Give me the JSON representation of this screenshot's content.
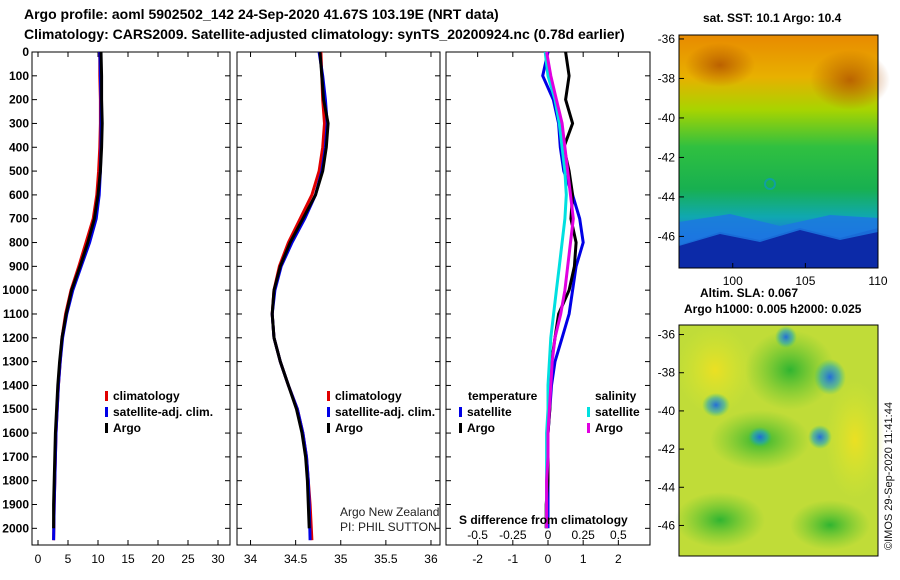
{
  "header": {
    "line1": "Argo profile: aoml 5902502_142 24-Sep-2020 41.67S 103.19E (NRT data)",
    "line2": "Climatology: CARS2009. Satellite-adjusted climatology: synTS_20200924.nc (0.78d earlier)"
  },
  "colors": {
    "climatology": "#e00000",
    "satellite": "#0000e6",
    "argo": "#000000",
    "sat_salinity": "#00e0e0",
    "argo_salinity": "#e000e0"
  },
  "chart_data": [
    {
      "type": "line",
      "panel": "temperature",
      "ylabel": "depth",
      "yticks": [
        0,
        100,
        200,
        300,
        400,
        500,
        600,
        700,
        800,
        900,
        1000,
        1100,
        1200,
        1300,
        1400,
        1500,
        1600,
        1700,
        1800,
        1900,
        2000
      ],
      "xticks": [
        0,
        5,
        10,
        15,
        20,
        25,
        30
      ],
      "xlim": [
        -1,
        32
      ],
      "ylim": [
        2070,
        0
      ],
      "legend": [
        "climatology",
        "satellite-adj. clim.",
        "Argo"
      ],
      "series": [
        {
          "name": "climatology",
          "color": "#e00000",
          "x": [
            10.3,
            10.3,
            10.4,
            10.4,
            10.3,
            10.1,
            9.8,
            9.2,
            8.0,
            6.8,
            5.5,
            4.6,
            4.0,
            3.7,
            3.4,
            3.2,
            3.0,
            2.9,
            2.8,
            2.7,
            2.6
          ],
          "y": [
            0,
            100,
            200,
            300,
            400,
            500,
            600,
            700,
            800,
            900,
            1000,
            1100,
            1200,
            1300,
            1400,
            1500,
            1600,
            1700,
            1800,
            1900,
            2050
          ]
        },
        {
          "name": "satellite-adj. clim.",
          "color": "#0000e6",
          "x": [
            10.3,
            10.4,
            10.5,
            10.5,
            10.5,
            10.4,
            10.2,
            9.7,
            8.6,
            7.2,
            5.8,
            4.8,
            4.1,
            3.7,
            3.4,
            3.2,
            3.0,
            2.9,
            2.8,
            2.7,
            2.6
          ],
          "y": [
            0,
            100,
            200,
            300,
            400,
            500,
            600,
            700,
            800,
            900,
            1000,
            1100,
            1200,
            1300,
            1400,
            1500,
            1600,
            1700,
            1800,
            1900,
            2050
          ]
        },
        {
          "name": "Argo",
          "color": "#000000",
          "x": [
            10.5,
            10.6,
            10.6,
            10.7,
            10.6,
            10.4,
            10.0,
            9.4,
            8.3,
            7.0,
            5.6,
            4.7,
            4.0,
            3.6,
            3.3,
            3.1,
            2.9,
            2.8,
            2.7,
            2.6,
            2.6
          ],
          "y": [
            0,
            100,
            200,
            300,
            400,
            500,
            600,
            700,
            800,
            900,
            1000,
            1100,
            1200,
            1300,
            1400,
            1500,
            1600,
            1700,
            1800,
            1900,
            2000
          ]
        }
      ]
    },
    {
      "type": "line",
      "panel": "salinity",
      "xticks": [
        34,
        34.5,
        35,
        35.5,
        36
      ],
      "xlim": [
        33.85,
        36.1
      ],
      "ylim": [
        2070,
        0
      ],
      "legend": [
        "climatology",
        "satellite-adj. clim.",
        "Argo"
      ],
      "series": [
        {
          "name": "climatology",
          "color": "#e00000",
          "x": [
            34.78,
            34.79,
            34.8,
            34.82,
            34.8,
            34.76,
            34.68,
            34.55,
            34.42,
            34.32,
            34.26,
            34.24,
            34.26,
            34.33,
            34.42,
            34.52,
            34.58,
            34.62,
            34.64,
            34.66,
            34.68
          ],
          "y": [
            0,
            100,
            200,
            300,
            400,
            500,
            600,
            700,
            800,
            900,
            1000,
            1100,
            1200,
            1300,
            1400,
            1500,
            1600,
            1700,
            1800,
            1900,
            2050
          ]
        },
        {
          "name": "satellite-adj. clim.",
          "color": "#0000e6",
          "x": [
            34.76,
            34.8,
            34.83,
            34.85,
            34.83,
            34.79,
            34.72,
            34.6,
            34.46,
            34.34,
            34.27,
            34.24,
            34.26,
            34.33,
            34.42,
            34.52,
            34.58,
            34.62,
            34.64,
            34.65,
            34.66
          ],
          "y": [
            0,
            100,
            200,
            300,
            400,
            500,
            600,
            700,
            800,
            900,
            1000,
            1100,
            1200,
            1300,
            1400,
            1500,
            1600,
            1700,
            1800,
            1900,
            2050
          ]
        },
        {
          "name": "Argo",
          "color": "#000000",
          "x": [
            34.77,
            34.79,
            34.81,
            34.86,
            34.84,
            34.8,
            34.72,
            34.58,
            34.44,
            34.33,
            34.26,
            34.24,
            34.26,
            34.33,
            34.42,
            34.51,
            34.57,
            34.61,
            34.63,
            34.64,
            34.65
          ],
          "y": [
            0,
            100,
            200,
            300,
            400,
            500,
            600,
            700,
            800,
            900,
            1000,
            1100,
            1200,
            1300,
            1400,
            1500,
            1600,
            1700,
            1800,
            1900,
            2000
          ]
        }
      ]
    },
    {
      "type": "line",
      "panel": "difference",
      "xlabel": "S difference from climatology",
      "xticks_top": [
        "-0.5",
        "-0.25",
        "0",
        "0.25",
        "0.5"
      ],
      "xticks_bottom": [
        "-2",
        "-1",
        "0",
        "1",
        "2"
      ],
      "xlim": [
        -2.9,
        2.9
      ],
      "ylim": [
        2070,
        0
      ],
      "legend_left": {
        "title": "temperature",
        "items": [
          "satellite",
          "Argo"
        ]
      },
      "legend_right": {
        "title": "salinity",
        "items": [
          "satellite",
          "Argo"
        ]
      },
      "series": [
        {
          "name": "temperature satellite",
          "color": "#0000e6",
          "x": [
            0.0,
            -0.15,
            0.15,
            0.3,
            0.35,
            0.45,
            0.7,
            0.9,
            1.0,
            0.8,
            0.7,
            0.6,
            0.4,
            0.2,
            0.1,
            0.05,
            0.0,
            0.0,
            0.0,
            0.0,
            0.0
          ],
          "y": [
            0,
            100,
            200,
            300,
            400,
            500,
            600,
            700,
            800,
            900,
            1000,
            1100,
            1200,
            1300,
            1400,
            1500,
            1600,
            1700,
            1800,
            1900,
            2000
          ]
        },
        {
          "name": "temperature Argo",
          "color": "#000000",
          "x": [
            0.5,
            0.6,
            0.5,
            0.7,
            0.45,
            0.6,
            0.7,
            0.65,
            0.8,
            0.75,
            0.6,
            0.3,
            0.2,
            0.1,
            0.05,
            0.05,
            0.0,
            0.0,
            0.0,
            -0.05,
            -0.05
          ],
          "y": [
            0,
            100,
            200,
            300,
            400,
            500,
            600,
            700,
            800,
            900,
            1000,
            1100,
            1200,
            1300,
            1400,
            1500,
            1600,
            1700,
            1800,
            1900,
            2000
          ]
        },
        {
          "name": "salinity satellite",
          "color": "#00e0e0",
          "x": [
            -0.02,
            0.0,
            0.05,
            0.08,
            0.1,
            0.12,
            0.13,
            0.12,
            0.1,
            0.08,
            0.06,
            0.04,
            0.02,
            0.01,
            0.0,
            0.0,
            -0.01,
            -0.01,
            -0.01,
            -0.01,
            -0.01
          ],
          "y": [
            0,
            100,
            200,
            300,
            400,
            500,
            600,
            700,
            800,
            900,
            1000,
            1100,
            1200,
            1300,
            1400,
            1500,
            1600,
            1700,
            1800,
            1900,
            2000
          ]
        },
        {
          "name": "salinity Argo",
          "color": "#e000e0",
          "x": [
            -0.01,
            0.02,
            0.06,
            0.1,
            0.12,
            0.14,
            0.16,
            0.18,
            0.16,
            0.14,
            0.12,
            0.09,
            0.05,
            0.03,
            0.02,
            0.01,
            0.0,
            0.0,
            -0.01,
            -0.01,
            -0.01
          ],
          "y": [
            0,
            100,
            200,
            300,
            400,
            500,
            600,
            700,
            800,
            900,
            1000,
            1100,
            1200,
            1300,
            1400,
            1500,
            1600,
            1700,
            1800,
            1900,
            2000
          ]
        }
      ]
    },
    {
      "type": "heatmap",
      "panel": "sst_map",
      "title": "sat. SST: 10.1  Argo: 10.4",
      "xticks": [
        100,
        105,
        110
      ],
      "yticks": [
        -36,
        -38,
        -40,
        -42,
        -44,
        -46
      ],
      "xlim": [
        96.3,
        110
      ],
      "ylim": [
        -47.6,
        -35.8
      ]
    },
    {
      "type": "heatmap",
      "panel": "sla_map",
      "title_line1": "Altim. SLA: 0.067",
      "title_line2": "Argo h1000: 0.005 h2000: 0.025",
      "yticks": [
        -36,
        -38,
        -40,
        -42,
        -44,
        -46
      ],
      "ylim": [
        -47.6,
        -35.5
      ]
    }
  ],
  "text_blocks": {
    "legend_climatology": "climatology",
    "legend_satellite": "satellite-adj. clim.",
    "legend_argo": "Argo",
    "legend_temperature": "temperature",
    "legend_salinity": "salinity",
    "legend_satellite_short": "satellite",
    "credit_line1": "Argo New Zealand",
    "credit_line2": "PI: PHIL SUTTON",
    "diff_label": "S difference from climatology",
    "timestamp": "©IMOS 29-Sep-2020 11:41:44"
  }
}
